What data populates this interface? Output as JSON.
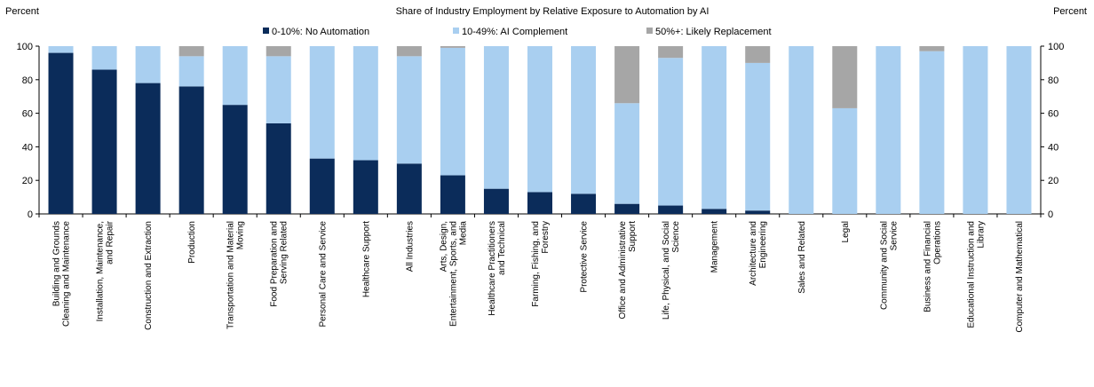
{
  "chart_data": {
    "type": "bar",
    "stacked": true,
    "title": "Share of Industry Employment by Relative Exposure to Automation by AI",
    "ylabel_left": "Percent",
    "ylabel_right": "Percent",
    "ylim": [
      0,
      100
    ],
    "yticks": [
      0,
      20,
      40,
      60,
      80,
      100
    ],
    "legend_position": "top-center",
    "grid": false,
    "categories": [
      "Building and Grounds Cleaning and Maintenance",
      "Installation, Maintenance, and Repair",
      "Construction and Extraction",
      "Production",
      "Transportation and Material Moving",
      "Food Preparation and Serving Related",
      "Personal Care and Service",
      "Healthcare Support",
      "All Industries",
      "Arts, Design, Entertainment, Sports, and Media",
      "Healthcare Practitioners and Technical",
      "Farming, Fishing, and Forestry",
      "Protective Service",
      "Office and Administrative Support",
      "Life, Physical, and Social Science",
      "Management",
      "Architecture and Engineering",
      "Sales and Related",
      "Legal",
      "Community and Social Service",
      "Business and Financial Operations",
      "Educational Instruction and Library",
      "Computer and Mathematical"
    ],
    "series": [
      {
        "name": "0-10%: No Automation",
        "color": "#0b2c5a",
        "values": [
          96,
          86,
          78,
          76,
          65,
          54,
          33,
          32,
          30,
          23,
          15,
          13,
          12,
          6,
          5,
          3,
          2,
          0,
          0,
          0,
          0,
          0,
          0
        ]
      },
      {
        "name": "10-49%: AI Complement",
        "color": "#a9cff0",
        "values": [
          4,
          14,
          22,
          18,
          35,
          40,
          67,
          68,
          64,
          76,
          85,
          87,
          88,
          60,
          88,
          97,
          88,
          100,
          63,
          100,
          97,
          100,
          100
        ]
      },
      {
        "name": "50%+: Likely Replacement",
        "color": "#a6a6a6",
        "values": [
          0,
          0,
          0,
          6,
          0,
          6,
          0,
          0,
          6,
          1,
          0,
          0,
          0,
          34,
          7,
          0,
          10,
          0,
          37,
          0,
          3,
          0,
          0
        ]
      }
    ]
  }
}
